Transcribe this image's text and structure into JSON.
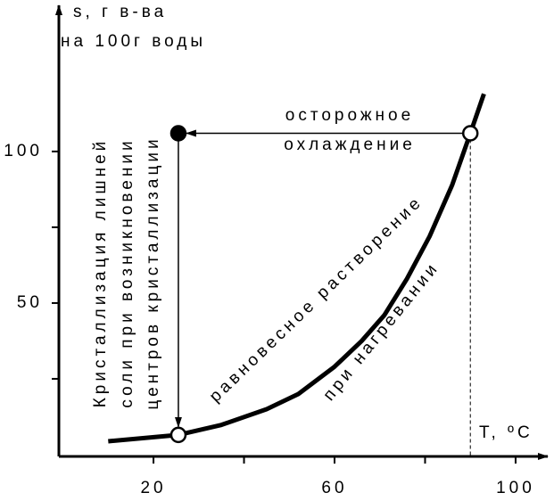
{
  "chart_data": {
    "type": "line",
    "y_label_lines": [
      "s, г в-ва",
      "на 100г воды"
    ],
    "x_label": "T, ºC",
    "xlim": [
      -0.9,
      107.3
    ],
    "ylim": [
      -0.6,
      148.5
    ],
    "xticks": [
      20,
      60,
      100
    ],
    "xminor": [
      40,
      80
    ],
    "yticks": [
      50,
      100
    ],
    "yminor": [
      25,
      75
    ],
    "series": [
      {
        "x": [
          10,
          25.5,
          35,
          45,
          52,
          60,
          66,
          71,
          76,
          81,
          86,
          90,
          93
        ],
        "values": [
          4.4,
          6.5,
          9.8,
          15,
          20,
          29,
          37.5,
          46,
          58,
          72,
          89,
          106,
          119
        ],
        "color": "#000"
      }
    ],
    "points": [
      {
        "x": 90,
        "y": 106,
        "filled": false
      },
      {
        "x": 25.5,
        "y": 106,
        "filled": true
      },
      {
        "x": 25.5,
        "y": 6.5,
        "filled": false
      }
    ],
    "annotations": {
      "cooling": [
        "осторожное",
        "охлаждение"
      ],
      "crystallization": [
        "Кристаллизация лишней",
        "соли при возникновении",
        "центров кристаллизации"
      ],
      "curve_upper": "равновесное растворение",
      "curve_lower": "при нагревании"
    }
  }
}
